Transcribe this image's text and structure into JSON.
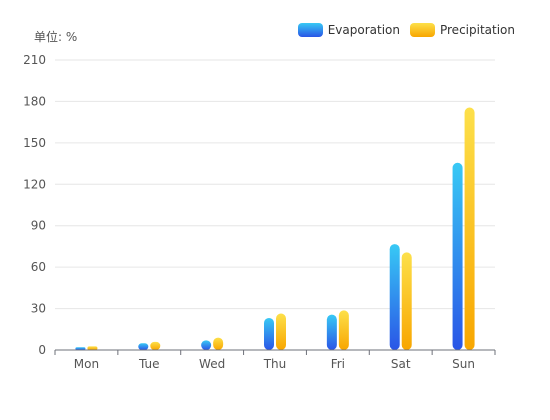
{
  "chart_data": {
    "type": "bar",
    "unit_label": "单位: %",
    "categories": [
      "Mon",
      "Tue",
      "Wed",
      "Thu",
      "Fri",
      "Sat",
      "Sun"
    ],
    "series": [
      {
        "name": "Evaporation",
        "values": [
          2.0,
          4.9,
          7.0,
          23.2,
          25.6,
          76.7,
          135.6
        ],
        "gradient": [
          "#38c9f5",
          "#2a55e6"
        ]
      },
      {
        "name": "Precipitation",
        "values": [
          2.6,
          5.9,
          9.0,
          26.4,
          28.7,
          70.7,
          175.6
        ],
        "gradient": [
          "#fde04a",
          "#f8a600"
        ]
      }
    ],
    "ylim": [
      0,
      210
    ],
    "yticks": [
      "0",
      "30",
      "60",
      "90",
      "120",
      "150",
      "180",
      "210"
    ],
    "grid": true,
    "legend_position": "top-right"
  }
}
